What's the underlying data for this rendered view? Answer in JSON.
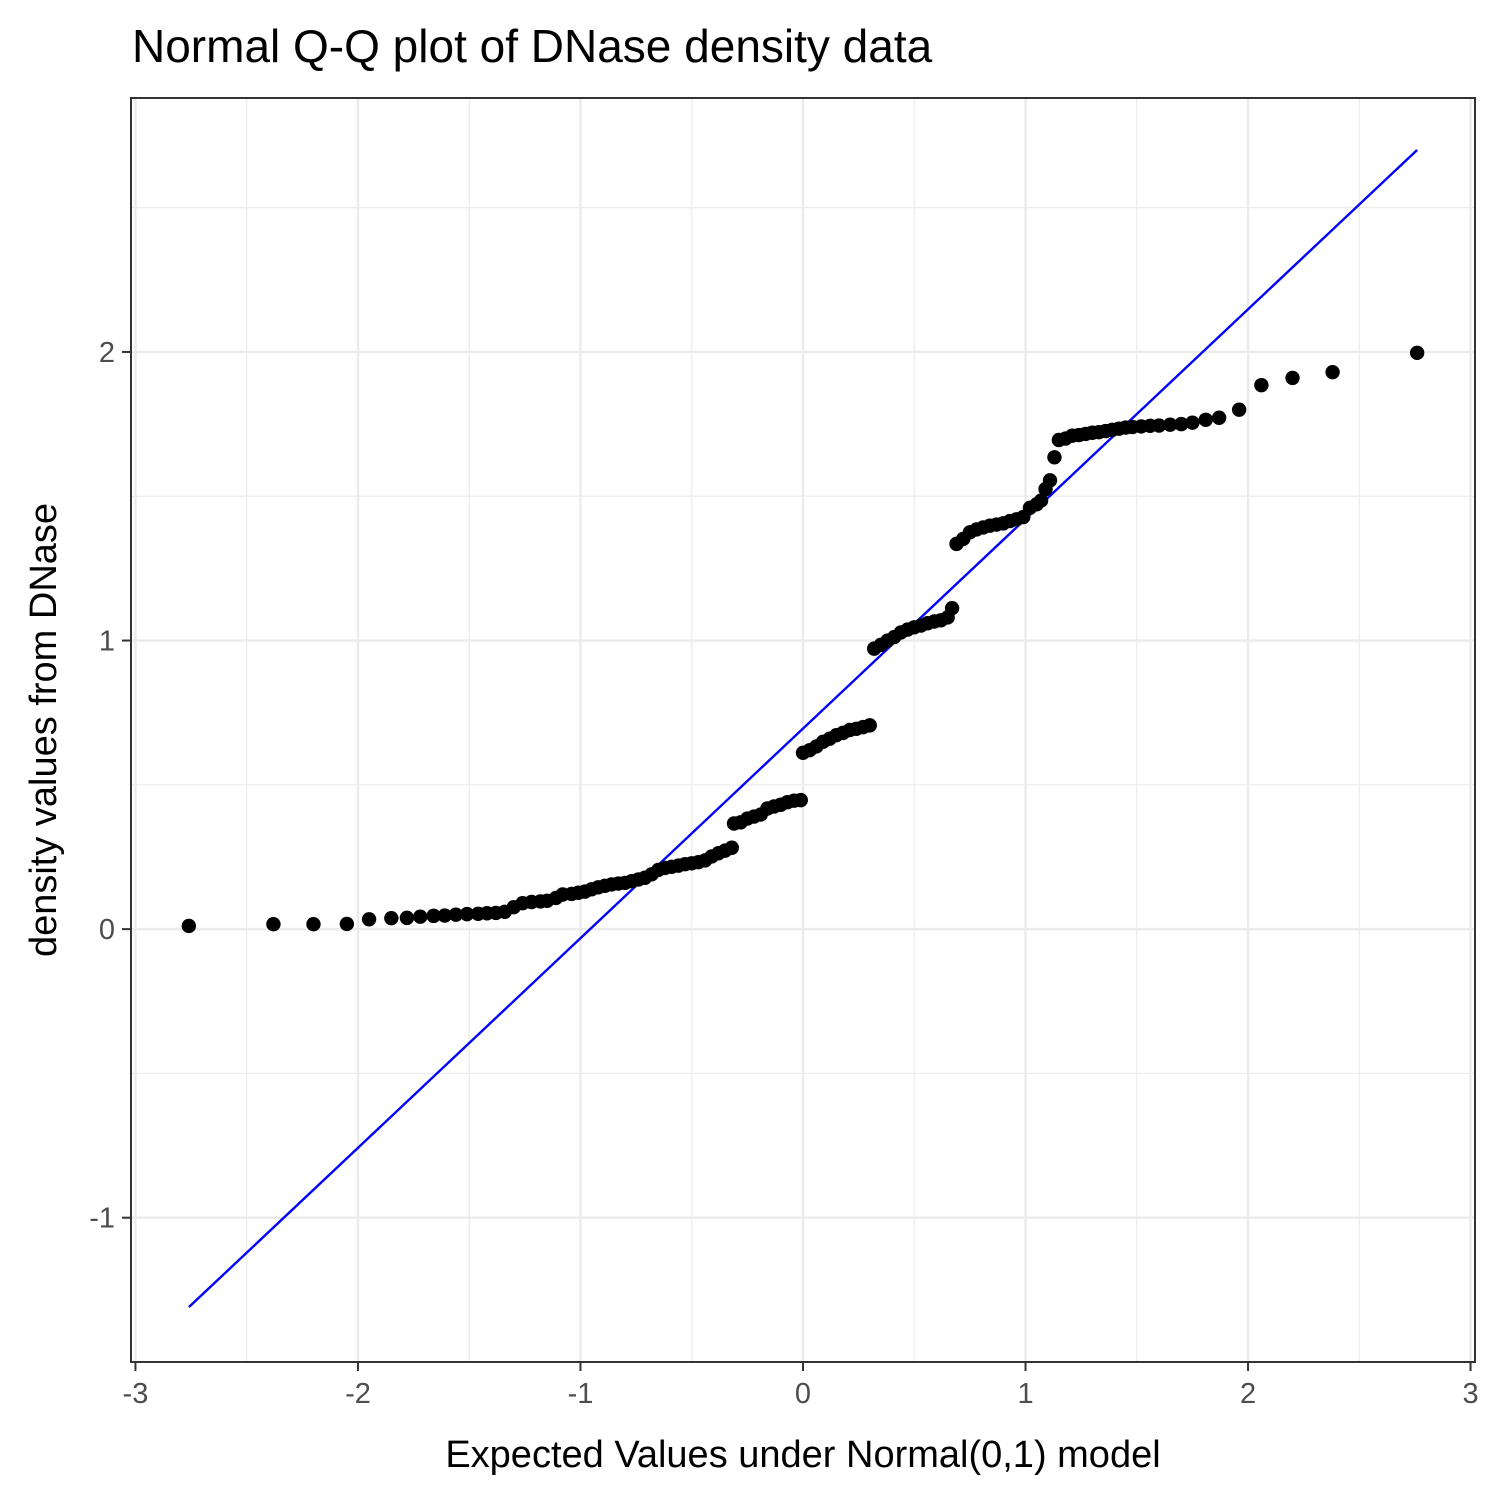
{
  "chart_data": {
    "type": "scatter",
    "title": "Normal Q-Q plot of DNase density data",
    "xlabel": "Expected Values under Normal(0,1) model",
    "ylabel": "density values from DNase",
    "xlim": [
      -3.02,
      3.02
    ],
    "ylim": [
      -1.5,
      2.88
    ],
    "x_ticks": [
      -3,
      -2,
      -1,
      0,
      1,
      2,
      3
    ],
    "x_tick_labels": [
      "-3",
      "-2",
      "-1",
      "0",
      "1",
      "2",
      "3"
    ],
    "y_ticks": [
      -1,
      0,
      1,
      2
    ],
    "y_tick_labels": [
      "-1",
      "0",
      "1",
      "2"
    ],
    "grid": true,
    "colors": {
      "points": "#000000",
      "reference_line": "#0000ff",
      "grid": "#ebebeb",
      "panel_border": "#333333"
    },
    "reference_line": {
      "x": [
        -2.76,
        2.76
      ],
      "y": [
        -1.31,
        2.7
      ]
    },
    "points": [
      [
        -2.76,
        0.011
      ],
      [
        -2.38,
        0.017
      ],
      [
        -2.2,
        0.017
      ],
      [
        -2.05,
        0.018
      ],
      [
        -1.95,
        0.034
      ],
      [
        -1.85,
        0.038
      ],
      [
        -1.78,
        0.039
      ],
      [
        -1.72,
        0.043
      ],
      [
        -1.66,
        0.046
      ],
      [
        -1.61,
        0.047
      ],
      [
        -1.56,
        0.05
      ],
      [
        -1.51,
        0.052
      ],
      [
        -1.46,
        0.053
      ],
      [
        -1.42,
        0.055
      ],
      [
        -1.38,
        0.056
      ],
      [
        -1.34,
        0.06
      ],
      [
        -1.3,
        0.076
      ],
      [
        -1.26,
        0.09
      ],
      [
        -1.22,
        0.094
      ],
      [
        -1.18,
        0.096
      ],
      [
        -1.15,
        0.098
      ],
      [
        -1.11,
        0.108
      ],
      [
        -1.08,
        0.12
      ],
      [
        -1.04,
        0.122
      ],
      [
        -1.01,
        0.126
      ],
      [
        -0.98,
        0.13
      ],
      [
        -0.95,
        0.138
      ],
      [
        -0.92,
        0.145
      ],
      [
        -0.89,
        0.15
      ],
      [
        -0.86,
        0.155
      ],
      [
        -0.83,
        0.158
      ],
      [
        -0.8,
        0.16
      ],
      [
        -0.77,
        0.166
      ],
      [
        -0.74,
        0.172
      ],
      [
        -0.71,
        0.178
      ],
      [
        -0.68,
        0.19
      ],
      [
        -0.65,
        0.205
      ],
      [
        -0.62,
        0.212
      ],
      [
        -0.59,
        0.216
      ],
      [
        -0.56,
        0.22
      ],
      [
        -0.53,
        0.225
      ],
      [
        -0.5,
        0.228
      ],
      [
        -0.47,
        0.232
      ],
      [
        -0.44,
        0.238
      ],
      [
        -0.41,
        0.252
      ],
      [
        -0.38,
        0.263
      ],
      [
        -0.35,
        0.272
      ],
      [
        -0.32,
        0.282
      ],
      [
        -0.31,
        0.366
      ],
      [
        -0.28,
        0.37
      ],
      [
        -0.25,
        0.383
      ],
      [
        -0.22,
        0.39
      ],
      [
        -0.19,
        0.397
      ],
      [
        -0.16,
        0.418
      ],
      [
        -0.13,
        0.425
      ],
      [
        -0.1,
        0.431
      ],
      [
        -0.07,
        0.44
      ],
      [
        -0.04,
        0.445
      ],
      [
        -0.01,
        0.447
      ],
      [
        0.0,
        0.611
      ],
      [
        0.03,
        0.62
      ],
      [
        0.06,
        0.633
      ],
      [
        0.09,
        0.649
      ],
      [
        0.12,
        0.66
      ],
      [
        0.15,
        0.672
      ],
      [
        0.18,
        0.68
      ],
      [
        0.21,
        0.69
      ],
      [
        0.24,
        0.694
      ],
      [
        0.27,
        0.7
      ],
      [
        0.3,
        0.706
      ],
      [
        0.32,
        0.972
      ],
      [
        0.35,
        0.985
      ],
      [
        0.38,
        1.0
      ],
      [
        0.41,
        1.012
      ],
      [
        0.44,
        1.028
      ],
      [
        0.47,
        1.038
      ],
      [
        0.5,
        1.046
      ],
      [
        0.53,
        1.052
      ],
      [
        0.56,
        1.06
      ],
      [
        0.59,
        1.066
      ],
      [
        0.62,
        1.07
      ],
      [
        0.65,
        1.08
      ],
      [
        0.67,
        1.112
      ],
      [
        0.69,
        1.335
      ],
      [
        0.72,
        1.352
      ],
      [
        0.75,
        1.375
      ],
      [
        0.78,
        1.385
      ],
      [
        0.81,
        1.392
      ],
      [
        0.84,
        1.398
      ],
      [
        0.87,
        1.402
      ],
      [
        0.9,
        1.406
      ],
      [
        0.93,
        1.414
      ],
      [
        0.96,
        1.42
      ],
      [
        0.99,
        1.428
      ],
      [
        1.02,
        1.46
      ],
      [
        1.05,
        1.472
      ],
      [
        1.07,
        1.485
      ],
      [
        1.09,
        1.525
      ],
      [
        1.11,
        1.555
      ],
      [
        1.13,
        1.635
      ],
      [
        1.15,
        1.695
      ],
      [
        1.18,
        1.7
      ],
      [
        1.21,
        1.71
      ],
      [
        1.24,
        1.712
      ],
      [
        1.27,
        1.716
      ],
      [
        1.3,
        1.72
      ],
      [
        1.33,
        1.722
      ],
      [
        1.36,
        1.726
      ],
      [
        1.39,
        1.73
      ],
      [
        1.42,
        1.734
      ],
      [
        1.45,
        1.738
      ],
      [
        1.48,
        1.74
      ],
      [
        1.52,
        1.742
      ],
      [
        1.56,
        1.744
      ],
      [
        1.6,
        1.745
      ],
      [
        1.65,
        1.748
      ],
      [
        1.7,
        1.75
      ],
      [
        1.75,
        1.755
      ],
      [
        1.81,
        1.765
      ],
      [
        1.87,
        1.772
      ],
      [
        1.96,
        1.8
      ],
      [
        2.06,
        1.885
      ],
      [
        2.2,
        1.91
      ],
      [
        2.38,
        1.93
      ],
      [
        2.76,
        1.997
      ]
    ]
  }
}
